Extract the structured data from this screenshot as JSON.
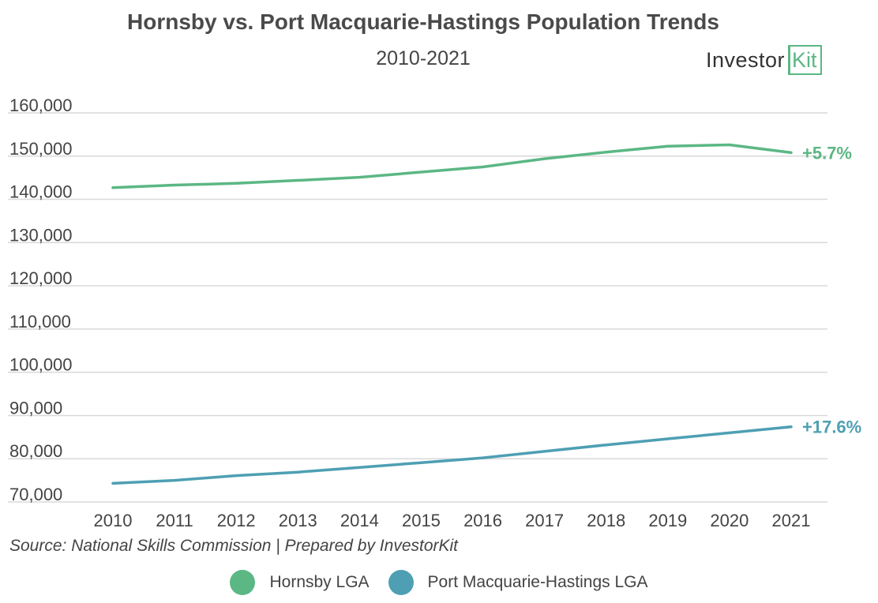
{
  "title": "Hornsby vs. Port Macquarie-Hastings Population Trends",
  "subtitle": "2010-2021",
  "logo": {
    "text_main": "Investor",
    "text_box": "Kit",
    "accent": "#5bb784"
  },
  "source": "Source:  National Skills Commission | Prepared by InvestorKit",
  "colors": {
    "hornsby": "#5bb784",
    "port_macquarie": "#4e9fb3",
    "grid": "#d9d9d9",
    "text": "#444444"
  },
  "chart_data": {
    "type": "line",
    "title": "Hornsby vs. Port Macquarie-Hastings Population Trends",
    "subtitle": "2010-2021",
    "x": [
      "2010",
      "2011",
      "2012",
      "2013",
      "2014",
      "2015",
      "2016",
      "2017",
      "2018",
      "2019",
      "2020",
      "2021"
    ],
    "yticks": [
      "70,000",
      "80,000",
      "90,000",
      "100,000",
      "110,000",
      "120,000",
      "130,000",
      "140,000",
      "150,000",
      "160,000"
    ],
    "ylim": [
      70000,
      160000
    ],
    "grid": true,
    "legend_position": "bottom",
    "series": [
      {
        "name": "Hornsby LGA",
        "color": "#5bb784",
        "values": [
          142700,
          143300,
          143700,
          144400,
          145100,
          146300,
          147500,
          149400,
          150900,
          152300,
          152600,
          150800
        ],
        "end_label": "+5.7%"
      },
      {
        "name": "Port Macquarie-Hastings LGA",
        "color": "#4e9fb3",
        "values": [
          74300,
          75000,
          76100,
          76900,
          78000,
          79100,
          80200,
          81700,
          83200,
          84600,
          86000,
          87400
        ],
        "end_label": "+17.6%"
      }
    ]
  }
}
